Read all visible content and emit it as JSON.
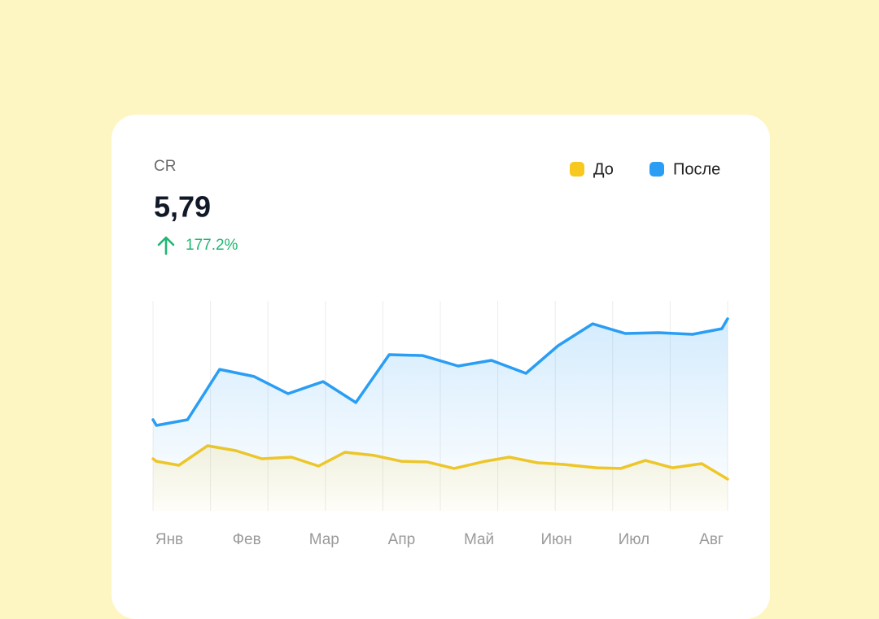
{
  "chart_data": {
    "type": "line",
    "title": "CR",
    "value": "5,79",
    "delta": "177.2%",
    "categories": [
      "Янв",
      "Фев",
      "Мар",
      "Апр",
      "Май",
      "Июн",
      "Июл",
      "Авг"
    ],
    "xlim": [
      0,
      100
    ],
    "xticks": [
      0,
      10,
      20,
      30,
      40,
      50,
      60,
      70,
      80,
      90,
      100
    ],
    "ylim": [
      0,
      100
    ],
    "grid": true,
    "legend": "top-right",
    "series": [
      {
        "name": "До",
        "color": "#f7c81e",
        "x": [
          0,
          0.6,
          4.5,
          9.5,
          14.4,
          18.95,
          24.1,
          28.8,
          33.4,
          38.5,
          43.2,
          47.7,
          52.4,
          57.8,
          62.0,
          66.9,
          71.5,
          77.2,
          81.4,
          85.7,
          90.4,
          95.5,
          100
        ],
        "values": [
          24.8,
          23.6,
          21.7,
          31.0,
          28.7,
          24.8,
          25.6,
          21.3,
          27.9,
          26.4,
          23.6,
          23.3,
          20.2,
          23.6,
          25.6,
          22.9,
          22.1,
          20.5,
          20.2,
          24.0,
          20.5,
          22.5,
          15.1
        ]
      },
      {
        "name": "После",
        "color": "#2a9df4",
        "x": [
          0,
          0.6,
          6.0,
          11.6,
          17.6,
          23.5,
          29.6,
          35.3,
          41.1,
          46.9,
          53.1,
          58.9,
          64.9,
          70.5,
          76.5,
          82.2,
          88.0,
          93.9,
          99.0,
          100
        ],
        "values": [
          43.4,
          40.7,
          43.4,
          67.4,
          64.0,
          55.8,
          61.6,
          51.6,
          74.4,
          74.0,
          69.0,
          71.7,
          65.5,
          78.7,
          89.1,
          84.5,
          84.9,
          84.1,
          86.8,
          91.5
        ]
      }
    ]
  }
}
